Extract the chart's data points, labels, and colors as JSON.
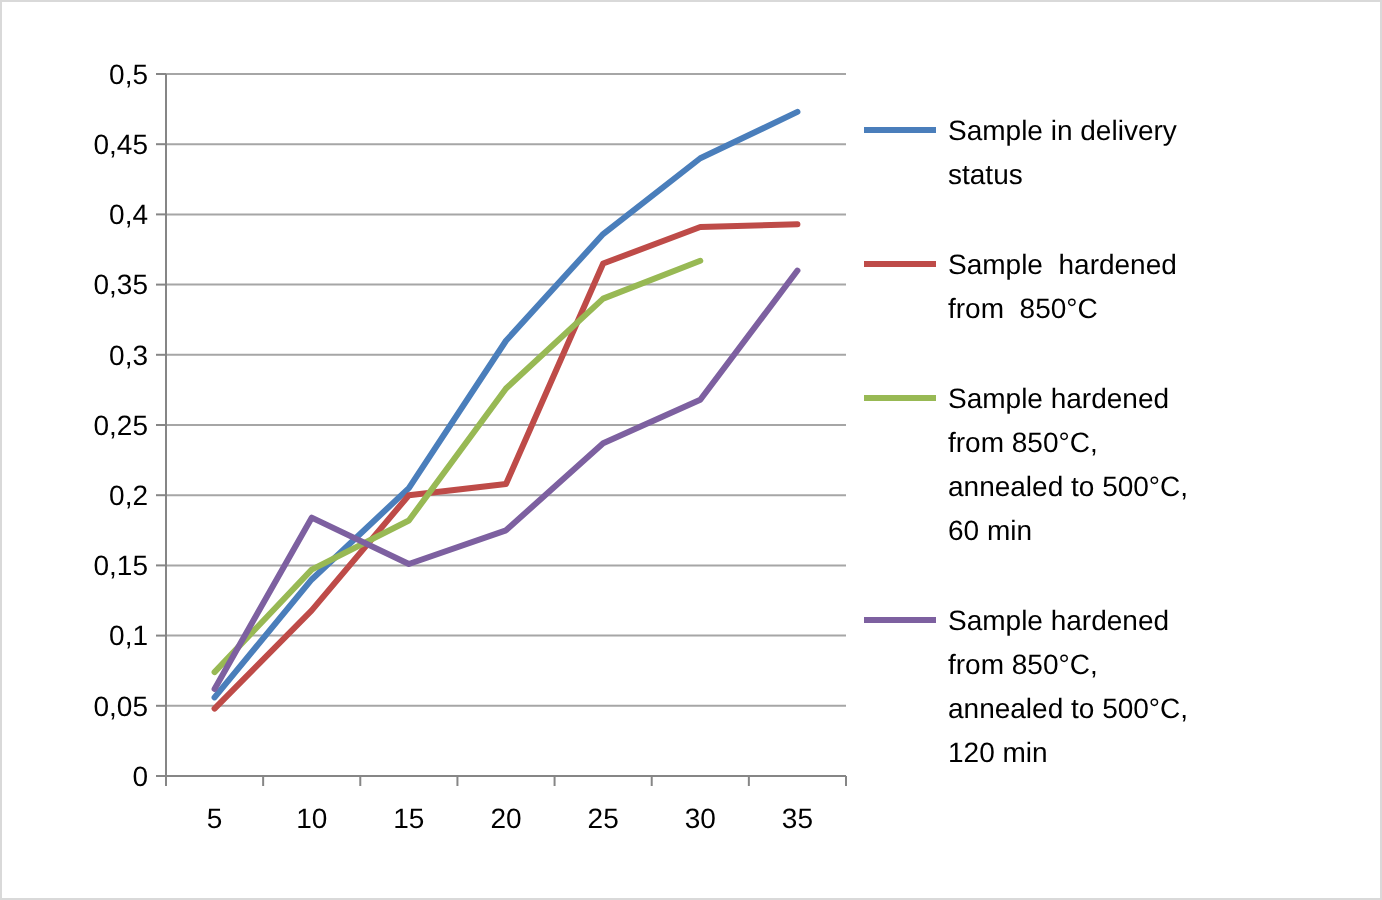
{
  "chart_data": {
    "type": "line",
    "categories": [
      "5",
      "10",
      "15",
      "20",
      "25",
      "30",
      "35"
    ],
    "ylim": [
      0,
      0.5
    ],
    "yticks": [
      {
        "value": 0,
        "label": "0"
      },
      {
        "value": 0.05,
        "label": "0,05"
      },
      {
        "value": 0.1,
        "label": "0,1"
      },
      {
        "value": 0.15,
        "label": "0,15"
      },
      {
        "value": 0.2,
        "label": "0,2"
      },
      {
        "value": 0.25,
        "label": "0,25"
      },
      {
        "value": 0.3,
        "label": "0,3"
      },
      {
        "value": 0.35,
        "label": "0,35"
      },
      {
        "value": 0.4,
        "label": "0,4"
      },
      {
        "value": 0.45,
        "label": "0,45"
      },
      {
        "value": 0.5,
        "label": "0,5"
      }
    ],
    "grid": "y",
    "legend": "right",
    "marker": "none",
    "series": [
      {
        "name": "Sample in delivery status",
        "color": "#4a7ebb",
        "values": [
          0.056,
          0.14,
          0.205,
          0.31,
          0.386,
          0.44,
          0.473
        ]
      },
      {
        "name": "Sample  hardened from  850°C",
        "color": "#be4b48",
        "values": [
          0.048,
          0.118,
          0.2,
          0.208,
          0.365,
          0.391,
          0.393
        ]
      },
      {
        "name": "Sample hardened from 850°C, annealed to 500°C, 60 min",
        "color": "#98b954",
        "values": [
          0.074,
          0.147,
          0.182,
          0.276,
          0.34,
          0.367,
          null
        ]
      },
      {
        "name": "Sample hardened from 850°C, annealed to 500°C, 120 min",
        "color": "#7d60a0",
        "values": [
          0.062,
          0.184,
          0.151,
          0.175,
          0.237,
          0.268,
          0.36
        ]
      }
    ]
  }
}
